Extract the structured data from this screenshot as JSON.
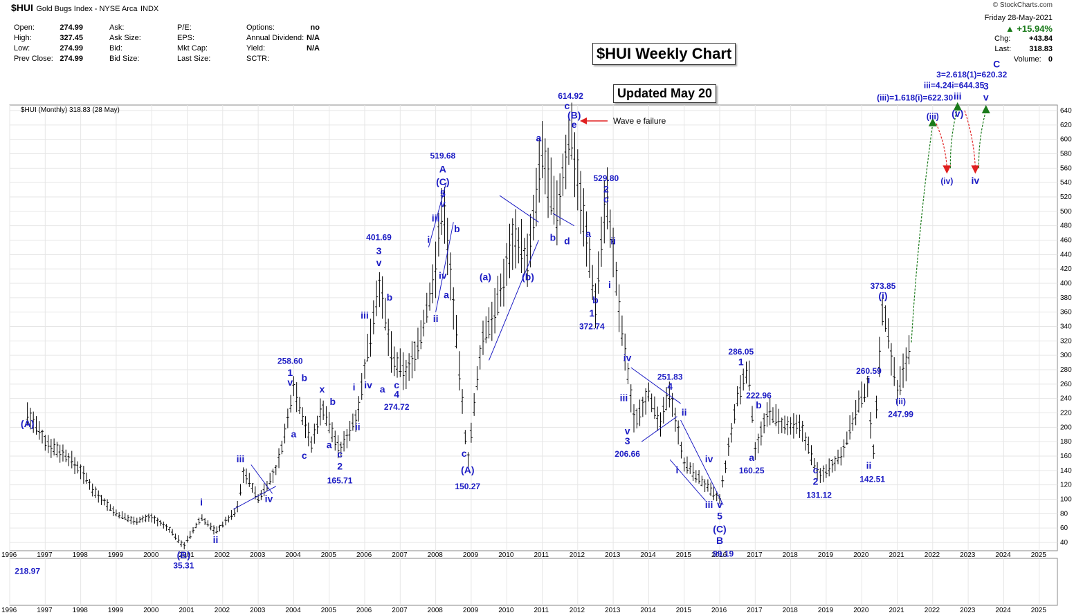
{
  "header": {
    "symbol": "$HUI",
    "description": "Gold Bugs Index - NYSE Arca",
    "exchange_tag": "INDX",
    "source": "© StockCharts.com",
    "date_line": "Friday   28-May-2021",
    "change_pct": "+15.94%",
    "chg_label": "Chg:",
    "chg_value": "+43.84",
    "last_label": "Last:",
    "last_value": "318.83",
    "volume_label": "Volume:",
    "volume_value": "0",
    "series_label": "$HUI (Monthly) 318.83 (28 May)"
  },
  "quote_table": {
    "col1": [
      [
        "Open:",
        "274.99"
      ],
      [
        "High:",
        "327.45"
      ],
      [
        "Low:",
        "274.99"
      ],
      [
        "Prev Close:",
        "274.99"
      ]
    ],
    "col2": [
      "Ask:",
      "Ask Size:",
      "Bid:",
      "Bid Size:"
    ],
    "col3": [
      "P/E:",
      "EPS:",
      "Mkt Cap:",
      "Last Size:"
    ],
    "col4": [
      [
        "Options:",
        "no"
      ],
      [
        "Annual Dividend:",
        "N/A"
      ],
      [
        "Yield:",
        "N/A"
      ],
      [
        "SCTR:",
        ""
      ]
    ]
  },
  "boxes": {
    "main_title": "$HUI Weekly Chart",
    "updated": "Updated May 20"
  },
  "wave_e_note": "Wave e failure",
  "colors": {
    "wave_text": "#1c1cc4",
    "price_bars": "#000000",
    "grid": "#e3e3e3",
    "up_arrow": "#1a7a1a",
    "down_arrow": "#e02020"
  },
  "chart_data": {
    "type": "ohlc",
    "title": "$HUI Weekly Chart",
    "y_axis": {
      "min": 40,
      "max": 640,
      "ticks": [
        40,
        60,
        80,
        100,
        120,
        140,
        160,
        180,
        200,
        220,
        240,
        260,
        280,
        300,
        320,
        340,
        360,
        380,
        400,
        420,
        440,
        460,
        480,
        500,
        520,
        540,
        560,
        580,
        600,
        620,
        640
      ]
    },
    "x_axis": {
      "years": [
        "1996",
        "1997",
        "1998",
        "1999",
        "2000",
        "2001",
        "2002",
        "2003",
        "2004",
        "2005",
        "2006",
        "2007",
        "2008",
        "2009",
        "2010",
        "2011",
        "2012",
        "2013",
        "2014",
        "2015",
        "2016",
        "2017",
        "2018",
        "2019",
        "2020",
        "2021",
        "2022",
        "2023",
        "2024",
        "2025"
      ]
    },
    "price_path": [
      [
        1996.5,
        218.97
      ],
      [
        1997.0,
        180
      ],
      [
        1997.6,
        160
      ],
      [
        1998.0,
        140
      ],
      [
        1998.4,
        110
      ],
      [
        1999.0,
        80
      ],
      [
        1999.5,
        70
      ],
      [
        2000.0,
        75
      ],
      [
        2000.5,
        58
      ],
      [
        2000.9,
        35.31
      ],
      [
        2001.4,
        75
      ],
      [
        2001.8,
        55
      ],
      [
        2002.4,
        85
      ],
      [
        2002.6,
        140
      ],
      [
        2003.0,
        100
      ],
      [
        2003.5,
        140
      ],
      [
        2003.8,
        200
      ],
      [
        2004.0,
        258.6
      ],
      [
        2004.5,
        175
      ],
      [
        2004.8,
        230
      ],
      [
        2005.3,
        165.71
      ],
      [
        2005.8,
        220
      ],
      [
        2006.0,
        280
      ],
      [
        2006.4,
        401.69
      ],
      [
        2006.8,
        290
      ],
      [
        2007.2,
        274.72
      ],
      [
        2007.6,
        330
      ],
      [
        2008.0,
        420
      ],
      [
        2008.2,
        519.68
      ],
      [
        2008.5,
        370
      ],
      [
        2008.9,
        150.27
      ],
      [
        2009.3,
        320
      ],
      [
        2009.8,
        380
      ],
      [
        2010.2,
        470
      ],
      [
        2010.6,
        430
      ],
      [
        2011.0,
        580
      ],
      [
        2011.4,
        490
      ],
      [
        2011.8,
        614.92
      ],
      [
        2012.2,
        480
      ],
      [
        2012.5,
        372.74
      ],
      [
        2012.8,
        529.8
      ],
      [
        2013.2,
        350
      ],
      [
        2013.6,
        206.66
      ],
      [
        2014.0,
        250
      ],
      [
        2014.3,
        200
      ],
      [
        2014.6,
        251.83
      ],
      [
        2015.0,
        150
      ],
      [
        2015.5,
        125
      ],
      [
        2016.0,
        99.19
      ],
      [
        2016.5,
        240
      ],
      [
        2016.8,
        286.05
      ],
      [
        2017.0,
        170
      ],
      [
        2017.4,
        222.96
      ],
      [
        2017.8,
        200
      ],
      [
        2018.3,
        200
      ],
      [
        2018.8,
        131.12
      ],
      [
        2019.4,
        160
      ],
      [
        2019.9,
        230
      ],
      [
        2020.2,
        260.59
      ],
      [
        2020.3,
        142.51
      ],
      [
        2020.6,
        373.85
      ],
      [
        2021.0,
        247.99
      ],
      [
        2021.4,
        318.83
      ]
    ],
    "projections": [
      {
        "kind": "up",
        "from": [
          2021.4,
          318
        ],
        "to": [
          2022.0,
          622
        ]
      },
      {
        "kind": "down",
        "from": [
          2022.1,
          622
        ],
        "to": [
          2022.4,
          560
        ]
      },
      {
        "kind": "up",
        "from": [
          2022.5,
          560
        ],
        "to": [
          2022.7,
          644
        ]
      },
      {
        "kind": "down",
        "from": [
          2022.9,
          640
        ],
        "to": [
          2023.2,
          560
        ]
      },
      {
        "kind": "up",
        "from": [
          2023.3,
          560
        ],
        "to": [
          2023.5,
          640
        ]
      }
    ],
    "trend_lines": [
      [
        [
          2002.3,
          86
        ],
        [
          2003.5,
          118
        ]
      ],
      [
        [
          2002.8,
          148
        ],
        [
          2003.4,
          108
        ]
      ],
      [
        [
          2007.8,
          450
        ],
        [
          2008.3,
          540
        ]
      ],
      [
        [
          2008.0,
          360
        ],
        [
          2008.5,
          485
        ]
      ],
      [
        [
          2009.5,
          293
        ],
        [
          2010.9,
          460
        ]
      ],
      [
        [
          2009.8,
          522
        ],
        [
          2010.9,
          485
        ]
      ],
      [
        [
          2011.3,
          497
        ],
        [
          2011.9,
          480
        ]
      ],
      [
        [
          2013.5,
          283
        ],
        [
          2014.9,
          233
        ]
      ],
      [
        [
          2013.8,
          180
        ],
        [
          2014.8,
          215
        ]
      ],
      [
        [
          2014.6,
          155
        ],
        [
          2015.6,
          98
        ]
      ],
      [
        [
          2014.9,
          210
        ],
        [
          2016.1,
          92
        ]
      ]
    ],
    "annotations": [
      {
        "t": "218.97",
        "x": 2996.5,
        "y": 0
      },
      {
        "t": "(A)",
        "x": 1996.5,
        "y": 204
      },
      {
        "t": "(B)",
        "x": 2000.9,
        "y": 22
      },
      {
        "t": "35.31",
        "x": 2000.9,
        "y": 8
      },
      {
        "t": "i",
        "x": 2001.4,
        "y": 95
      },
      {
        "t": "ii",
        "x": 2001.8,
        "y": 43
      },
      {
        "t": "iii",
        "x": 2002.5,
        "y": 155
      },
      {
        "t": "iv",
        "x": 2003.3,
        "y": 100
      },
      {
        "t": "258.60",
        "x": 2003.9,
        "y": 292
      },
      {
        "t": "1",
        "x": 2003.9,
        "y": 275
      },
      {
        "t": "v",
        "x": 2003.9,
        "y": 262
      },
      {
        "t": "a",
        "x": 2004.0,
        "y": 190
      },
      {
        "t": "c",
        "x": 2004.3,
        "y": 160
      },
      {
        "t": "x",
        "x": 2004.8,
        "y": 252
      },
      {
        "t": "b",
        "x": 2004.3,
        "y": 268
      },
      {
        "t": "a",
        "x": 2005.0,
        "y": 175
      },
      {
        "t": "b",
        "x": 2005.1,
        "y": 235
      },
      {
        "t": "c",
        "x": 2005.3,
        "y": 162
      },
      {
        "t": "2",
        "x": 2005.3,
        "y": 145
      },
      {
        "t": "165.71",
        "x": 2005.3,
        "y": 126
      },
      {
        "t": "i",
        "x": 2005.7,
        "y": 255
      },
      {
        "t": "ii",
        "x": 2005.8,
        "y": 200
      },
      {
        "t": "iii",
        "x": 2006.0,
        "y": 355
      },
      {
        "t": "iv",
        "x": 2006.1,
        "y": 258
      },
      {
        "t": "401.69",
        "x": 2006.4,
        "y": 464
      },
      {
        "t": "3",
        "x": 2006.4,
        "y": 444
      },
      {
        "t": "v",
        "x": 2006.4,
        "y": 428
      },
      {
        "t": "a",
        "x": 2006.5,
        "y": 252
      },
      {
        "t": "b",
        "x": 2006.7,
        "y": 380
      },
      {
        "t": "c",
        "x": 2006.9,
        "y": 258
      },
      {
        "t": "4",
        "x": 2006.9,
        "y": 245
      },
      {
        "t": "274.72",
        "x": 2006.9,
        "y": 228
      },
      {
        "t": "519.68",
        "x": 2008.2,
        "y": 577
      },
      {
        "t": "A",
        "x": 2008.2,
        "y": 558
      },
      {
        "t": "(C)",
        "x": 2008.2,
        "y": 540
      },
      {
        "t": "5",
        "x": 2008.2,
        "y": 524
      },
      {
        "t": "v",
        "x": 2008.2,
        "y": 510
      },
      {
        "t": "iii",
        "x": 2008.0,
        "y": 490
      },
      {
        "t": "i",
        "x": 2007.8,
        "y": 460
      },
      {
        "t": "b",
        "x": 2008.6,
        "y": 475
      },
      {
        "t": "iv",
        "x": 2008.2,
        "y": 410
      },
      {
        "t": "a",
        "x": 2008.3,
        "y": 383
      },
      {
        "t": "ii",
        "x": 2008.0,
        "y": 350
      },
      {
        "t": "c",
        "x": 2008.8,
        "y": 163
      },
      {
        "t": "(A)",
        "x": 2008.9,
        "y": 140
      },
      {
        "t": "150.27",
        "x": 2008.9,
        "y": 118
      },
      {
        "t": "(a)",
        "x": 2009.4,
        "y": 408
      },
      {
        "t": "(b)",
        "x": 2010.6,
        "y": 408
      },
      {
        "t": "a",
        "x": 2010.9,
        "y": 601
      },
      {
        "t": "b",
        "x": 2011.3,
        "y": 463
      },
      {
        "t": "d",
        "x": 2011.7,
        "y": 458
      },
      {
        "t": "614.92",
        "x": 2011.8,
        "y": 660
      },
      {
        "t": "c",
        "x": 2011.7,
        "y": 646
      },
      {
        "t": "(B)",
        "x": 2011.9,
        "y": 633
      },
      {
        "t": "e",
        "x": 2011.9,
        "y": 620
      },
      {
        "t": "a",
        "x": 2012.3,
        "y": 468
      },
      {
        "t": "b",
        "x": 2012.5,
        "y": 376
      },
      {
        "t": "1",
        "x": 2012.4,
        "y": 358
      },
      {
        "t": "372.74",
        "x": 2012.4,
        "y": 340
      },
      {
        "t": "529.80",
        "x": 2012.8,
        "y": 546
      },
      {
        "t": "2",
        "x": 2012.8,
        "y": 530
      },
      {
        "t": "c",
        "x": 2012.8,
        "y": 516
      },
      {
        "t": "ii",
        "x": 2013.0,
        "y": 458
      },
      {
        "t": "i",
        "x": 2012.9,
        "y": 397
      },
      {
        "t": "iv",
        "x": 2013.4,
        "y": 296
      },
      {
        "t": "iii",
        "x": 2013.3,
        "y": 240
      },
      {
        "t": "v",
        "x": 2013.4,
        "y": 194
      },
      {
        "t": "3",
        "x": 2013.4,
        "y": 180
      },
      {
        "t": "206.66",
        "x": 2013.4,
        "y": 163
      },
      {
        "t": "251.83",
        "x": 2014.6,
        "y": 270
      },
      {
        "t": "4",
        "x": 2014.6,
        "y": 256
      },
      {
        "t": "ii",
        "x": 2015.0,
        "y": 220
      },
      {
        "t": "i",
        "x": 2014.8,
        "y": 140
      },
      {
        "t": "iv",
        "x": 2015.7,
        "y": 155
      },
      {
        "t": "iii",
        "x": 2015.7,
        "y": 92
      },
      {
        "t": "v",
        "x": 2016.0,
        "y": 92
      },
      {
        "t": "5",
        "x": 2016.0,
        "y": 76
      },
      {
        "t": "(C)",
        "x": 2016.0,
        "y": 58
      },
      {
        "t": "B",
        "x": 2016.0,
        "y": 42
      },
      {
        "t": "99.19",
        "x": 2016.1,
        "y": 24
      },
      {
        "t": "286.05",
        "x": 2016.6,
        "y": 305
      },
      {
        "t": "1",
        "x": 2016.6,
        "y": 290
      },
      {
        "t": "222.96",
        "x": 2017.1,
        "y": 244
      },
      {
        "t": "b",
        "x": 2017.1,
        "y": 230
      },
      {
        "t": "a",
        "x": 2016.9,
        "y": 157
      },
      {
        "t": "160.25",
        "x": 2016.9,
        "y": 140
      },
      {
        "t": "c",
        "x": 2018.7,
        "y": 140
      },
      {
        "t": "2",
        "x": 2018.7,
        "y": 124
      },
      {
        "t": "131.12",
        "x": 2018.8,
        "y": 106
      },
      {
        "t": "260.59",
        "x": 2020.2,
        "y": 278
      },
      {
        "t": "i",
        "x": 2020.2,
        "y": 265
      },
      {
        "t": "ii",
        "x": 2020.2,
        "y": 146
      },
      {
        "t": "142.51",
        "x": 2020.3,
        "y": 128
      },
      {
        "t": "373.85",
        "x": 2020.6,
        "y": 396
      },
      {
        "t": "(i)",
        "x": 2020.6,
        "y": 382
      },
      {
        "t": "(ii)",
        "x": 2021.1,
        "y": 236
      },
      {
        "t": "247.99",
        "x": 2021.1,
        "y": 218
      },
      {
        "t": "(iii)",
        "x": 2022.0,
        "y": 632
      },
      {
        "t": "(iv)",
        "x": 2022.4,
        "y": 542
      },
      {
        "t": "(v)",
        "x": 2022.7,
        "y": 635
      },
      {
        "t": "iv",
        "x": 2023.2,
        "y": 542
      },
      {
        "t": "(iii)=1.618(i)=622.30",
        "x": 2021.5,
        "y": 658
      },
      {
        "t": "iii=4.24i=644.35",
        "x": 2022.6,
        "y": 675
      },
      {
        "t": "iii",
        "x": 2022.7,
        "y": 659
      },
      {
        "t": "3=2.618(1)=620.32",
        "x": 2023.1,
        "y": 690
      },
      {
        "t": "3",
        "x": 2023.5,
        "y": 673
      },
      {
        "t": "v",
        "x": 2023.5,
        "y": 658
      },
      {
        "t": "C",
        "x": 2023.8,
        "y": 704
      }
    ]
  }
}
